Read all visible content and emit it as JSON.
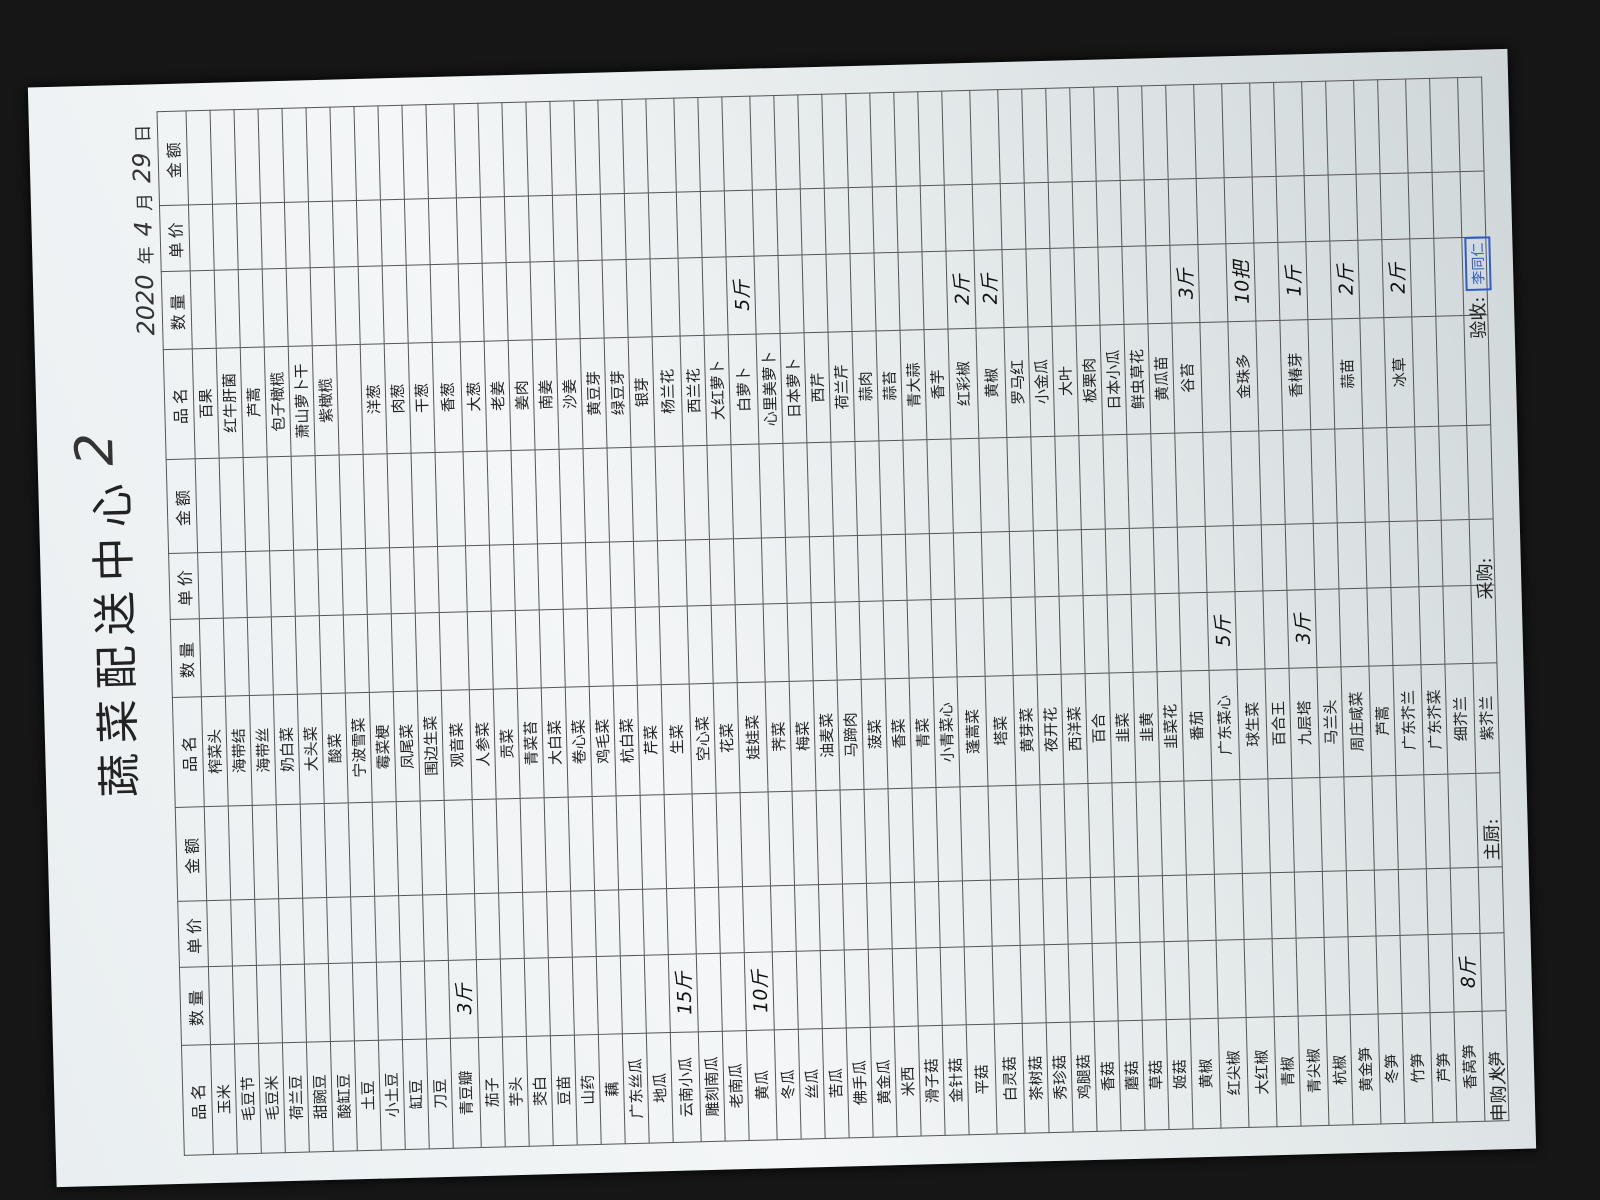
{
  "header": {
    "title": "蔬菜配送中心",
    "mark": "2",
    "date": {
      "year": "2020",
      "year_unit": "年",
      "month": "4",
      "month_unit": "月",
      "day": "29",
      "day_unit": "日"
    }
  },
  "table": {
    "columns": [
      "品名",
      "数量",
      "单价",
      "金额"
    ],
    "groups": [
      {
        "rows": [
          {
            "name": "玉米"
          },
          {
            "name": "毛豆节"
          },
          {
            "name": "毛豆米"
          },
          {
            "name": "荷兰豆"
          },
          {
            "name": "甜豌豆"
          },
          {
            "name": "酸缸豆"
          },
          {
            "name": "土豆"
          },
          {
            "name": "小土豆"
          },
          {
            "name": "缸豆"
          },
          {
            "name": "刀豆"
          },
          {
            "name": "青豆瓣",
            "qty": "3斤"
          },
          {
            "name": "茄子"
          },
          {
            "name": "芋头"
          },
          {
            "name": "茭白"
          },
          {
            "name": "豆苗"
          },
          {
            "name": "山药"
          },
          {
            "name": "藕"
          },
          {
            "name": "广东丝瓜"
          },
          {
            "name": "地瓜"
          },
          {
            "name": "云南小瓜",
            "qty": "15斤"
          },
          {
            "name": "雕刻南瓜"
          },
          {
            "name": "老南瓜"
          },
          {
            "name": "黄瓜",
            "qty": "10斤"
          },
          {
            "name": "冬瓜"
          },
          {
            "name": "丝瓜"
          },
          {
            "name": "苦瓜"
          },
          {
            "name": "佛手瓜"
          },
          {
            "name": "黄金瓜"
          },
          {
            "name": "米西"
          },
          {
            "name": "滑子菇"
          },
          {
            "name": "金针菇"
          },
          {
            "name": "平菇"
          },
          {
            "name": "白灵菇"
          },
          {
            "name": "茶树菇"
          },
          {
            "name": "秀珍菇"
          },
          {
            "name": "鸡腿菇"
          },
          {
            "name": "香菇"
          },
          {
            "name": "蘑菇"
          },
          {
            "name": "草菇"
          },
          {
            "name": "姬菇"
          },
          {
            "name": "黄椒"
          },
          {
            "name": "红尖椒"
          },
          {
            "name": "大红椒"
          },
          {
            "name": "青椒"
          },
          {
            "name": "青尖椒"
          },
          {
            "name": "杭椒"
          },
          {
            "name": "黄金笋"
          },
          {
            "name": "冬笋"
          },
          {
            "name": "竹笋"
          },
          {
            "name": "芦笋"
          },
          {
            "name": "香莴笋",
            "qty": "8斤"
          },
          {
            "name": "水笋"
          }
        ]
      },
      {
        "rows": [
          {
            "name": "榨菜头"
          },
          {
            "name": "海带结"
          },
          {
            "name": "海带丝"
          },
          {
            "name": "奶白菜"
          },
          {
            "name": "大头菜"
          },
          {
            "name": "酸菜"
          },
          {
            "name": "宁波雪菜"
          },
          {
            "name": "霉菜梗"
          },
          {
            "name": "凤尾菜"
          },
          {
            "name": "围边生菜"
          },
          {
            "name": "观音菜"
          },
          {
            "name": "人参菜"
          },
          {
            "name": "贡菜"
          },
          {
            "name": "青菜苔"
          },
          {
            "name": "大白菜"
          },
          {
            "name": "卷心菜"
          },
          {
            "name": "鸡毛菜"
          },
          {
            "name": "杭白菜"
          },
          {
            "name": "芹菜"
          },
          {
            "name": "生菜"
          },
          {
            "name": "空心菜"
          },
          {
            "name": "花菜"
          },
          {
            "name": "娃娃菜"
          },
          {
            "name": "荠菜"
          },
          {
            "name": "梅菜"
          },
          {
            "name": "油麦菜"
          },
          {
            "name": "马蹄肉"
          },
          {
            "name": "菠菜"
          },
          {
            "name": "香菜"
          },
          {
            "name": "青菜"
          },
          {
            "name": "小青菜心"
          },
          {
            "name": "蓬蒿菜"
          },
          {
            "name": "塔菜"
          },
          {
            "name": "黄芽菜"
          },
          {
            "name": "夜开花"
          },
          {
            "name": "西洋菜"
          },
          {
            "name": "百合"
          },
          {
            "name": "韭菜"
          },
          {
            "name": "韭黄"
          },
          {
            "name": "韭菜花"
          },
          {
            "name": "番茄"
          },
          {
            "name": "广东菜心",
            "qty": "5斤"
          },
          {
            "name": "球生菜"
          },
          {
            "name": "百合王"
          },
          {
            "name": "九层塔",
            "qty": "3斤"
          },
          {
            "name": "马兰头"
          },
          {
            "name": "周庄咸菜"
          },
          {
            "name": "芦蒿"
          },
          {
            "name": "广东芥兰"
          },
          {
            "name": "广东芥菜"
          },
          {
            "name": "细芥兰"
          },
          {
            "name": "紫芥兰"
          }
        ]
      },
      {
        "rows": [
          {
            "name": "百果"
          },
          {
            "name": "红牛肝菌"
          },
          {
            "name": "芦蒿"
          },
          {
            "name": "包子橄榄"
          },
          {
            "name": "萧山萝卜干"
          },
          {
            "name": "紫橄榄"
          },
          null,
          {
            "name": "洋葱"
          },
          {
            "name": "肉葱"
          },
          {
            "name": "干葱"
          },
          {
            "name": "香葱"
          },
          {
            "name": "大葱"
          },
          {
            "name": "老姜"
          },
          {
            "name": "姜肉"
          },
          {
            "name": "南姜"
          },
          {
            "name": "沙姜"
          },
          {
            "name": "黄豆芽"
          },
          {
            "name": "绿豆芽"
          },
          {
            "name": "银芽"
          },
          {
            "name": "杨兰花"
          },
          {
            "name": "西兰花"
          },
          {
            "name": "大红萝卜"
          },
          {
            "name": "白萝卜",
            "qty": "5斤"
          },
          {
            "name": "心里美萝卜"
          },
          {
            "name": "日本萝卜"
          },
          {
            "name": "西芹"
          },
          {
            "name": "荷兰芹"
          },
          {
            "name": "蒜肉"
          },
          {
            "name": "蒜苔"
          },
          {
            "name": "青大蒜"
          },
          {
            "name": "香芋"
          },
          {
            "name": "红彩椒",
            "qty": "2斤"
          },
          {
            "name": "黄椒",
            "qty": "2斤"
          },
          {
            "name": "罗马红"
          },
          {
            "name": "小金瓜"
          },
          {
            "name": "大叶"
          },
          {
            "name": "板栗肉"
          },
          {
            "name": "日本小瓜"
          },
          {
            "name": "鲜虫草花"
          },
          {
            "name": "黄瓜苗"
          },
          {
            "name": "谷苔",
            "qty": "3斤"
          },
          null,
          {
            "name": "金珠多",
            "qty": "10把"
          },
          null,
          {
            "name": "香椿芽",
            "qty": "1斤"
          },
          null,
          {
            "name": "蒜苗",
            "qty": "2斤"
          },
          null,
          {
            "name": "冰草",
            "qty": "2斤"
          }
        ]
      }
    ]
  },
  "footer": {
    "requester": "申购人:",
    "chef": "主厨:",
    "purchaser": "采购:",
    "inspector": "验收:",
    "stamp": "李同仁"
  }
}
